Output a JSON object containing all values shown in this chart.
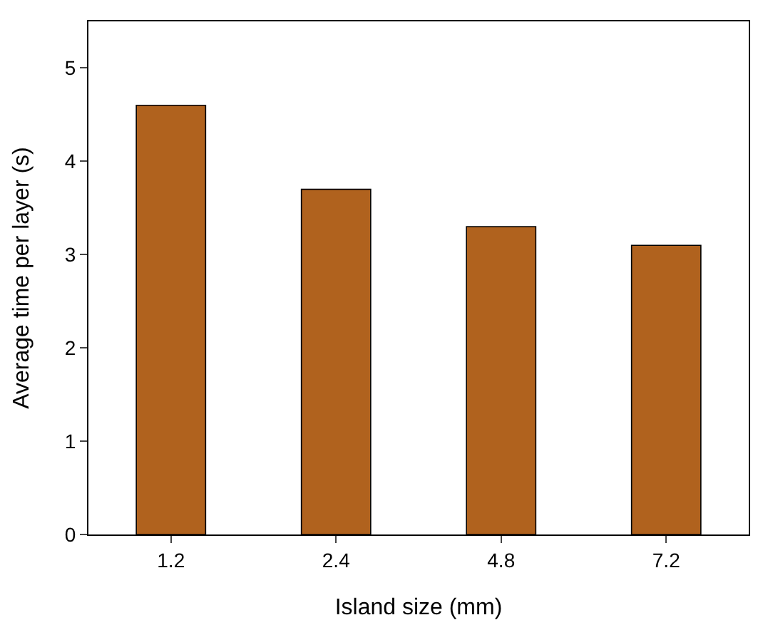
{
  "chart_data": {
    "type": "bar",
    "xlabel": "Island size (mm)",
    "ylabel": "Average time per layer (s)",
    "categories": [
      "1.2",
      "2.4",
      "4.8",
      "7.2"
    ],
    "values": [
      4.6,
      3.7,
      3.3,
      3.1
    ],
    "color": "#b0621e",
    "ylim": [
      0,
      5.5
    ],
    "yticks": [
      0,
      1,
      2,
      3,
      4,
      5
    ],
    "grid": false,
    "legend": false
  }
}
